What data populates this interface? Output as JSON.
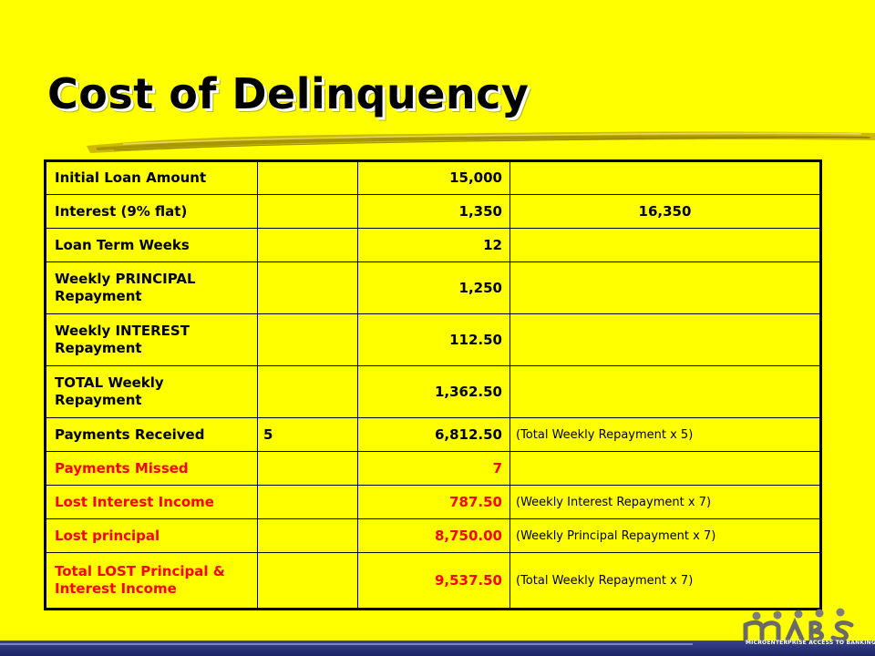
{
  "title": "Cost of Delinquency",
  "rows": [
    {
      "label": "Initial Loan Amount",
      "count": "",
      "amount": "15,000",
      "note": ""
    },
    {
      "label": "Interest (9% flat)",
      "count": "",
      "amount": "1,350",
      "note": "16,350"
    },
    {
      "label": "Loan Term Weeks",
      "count": "",
      "amount": "12",
      "note": ""
    },
    {
      "label": "Weekly PRINCIPAL Repayment",
      "count": "",
      "amount": "1,250",
      "note": ""
    },
    {
      "label": "Weekly INTEREST Repayment",
      "count": "",
      "amount": "112.50",
      "note": ""
    },
    {
      "label": "TOTAL Weekly Repayment",
      "count": "",
      "amount": "1,362.50",
      "note": ""
    },
    {
      "label": "Payments Received",
      "count": "5",
      "amount": "6,812.50",
      "note": "(Total Weekly  Repayment x 5)"
    },
    {
      "label": "Payments Missed",
      "count": "",
      "amount": "7",
      "note": ""
    },
    {
      "label": "Lost Interest Income",
      "count": "",
      "amount": "787.50",
      "note": "(Weekly  Interest Repayment x 7)"
    },
    {
      "label": "Lost principal",
      "count": "",
      "amount": "8,750.00",
      "note": "(Weekly  Principal Repayment x 7)"
    },
    {
      "label": "Total LOST Principal & Interest Income",
      "count": "",
      "amount": "9,537.50",
      "note": "(Total Weekly  Repayment x 7)"
    }
  ],
  "logo": {
    "text": "MICROENTERPRISE ACCESS TO BANKING SERVICES",
    "icon": "mabs-logo"
  },
  "colors": {
    "background": "#ffff00",
    "highlight_text": "#ff0000",
    "footer": "#2b3378"
  }
}
